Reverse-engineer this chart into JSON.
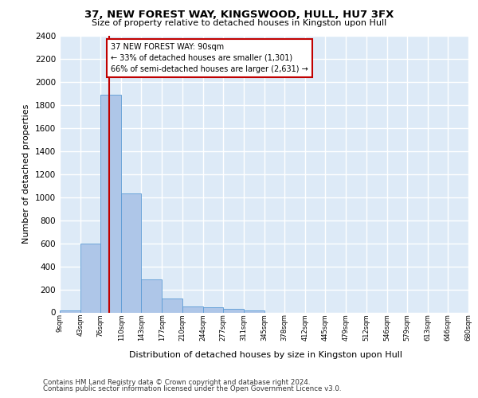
{
  "title1": "37, NEW FOREST WAY, KINGSWOOD, HULL, HU7 3FX",
  "title2": "Size of property relative to detached houses in Kingston upon Hull",
  "xlabel": "Distribution of detached houses by size in Kingston upon Hull",
  "ylabel": "Number of detached properties",
  "footer1": "Contains HM Land Registry data © Crown copyright and database right 2024.",
  "footer2": "Contains public sector information licensed under the Open Government Licence v3.0.",
  "annotation_line1": "37 NEW FOREST WAY: 90sqm",
  "annotation_line2": "← 33% of detached houses are smaller (1,301)",
  "annotation_line3": "66% of semi-detached houses are larger (2,631) →",
  "property_size": 90,
  "bar_values": [
    20,
    600,
    1890,
    1030,
    290,
    120,
    50,
    45,
    30,
    20,
    0,
    0,
    0,
    0,
    0,
    0,
    0,
    0,
    0,
    0
  ],
  "bin_edges": [
    9,
    43,
    76,
    110,
    143,
    177,
    210,
    244,
    277,
    311,
    345,
    378,
    412,
    445,
    479,
    512,
    546,
    579,
    613,
    646,
    680
  ],
  "bin_labels": [
    "9sqm",
    "43sqm",
    "76sqm",
    "110sqm",
    "143sqm",
    "177sqm",
    "210sqm",
    "244sqm",
    "277sqm",
    "311sqm",
    "345sqm",
    "378sqm",
    "412sqm",
    "445sqm",
    "479sqm",
    "512sqm",
    "546sqm",
    "579sqm",
    "613sqm",
    "646sqm",
    "680sqm"
  ],
  "bar_color": "#aec6e8",
  "bar_edge_color": "#5b9bd5",
  "vline_color": "#c00000",
  "annotation_box_edge_color": "#c00000",
  "bg_color": "#ddeaf7",
  "grid_color": "#ffffff",
  "fig_bg": "#ffffff",
  "ylim_max": 2400,
  "ytick_step": 200
}
